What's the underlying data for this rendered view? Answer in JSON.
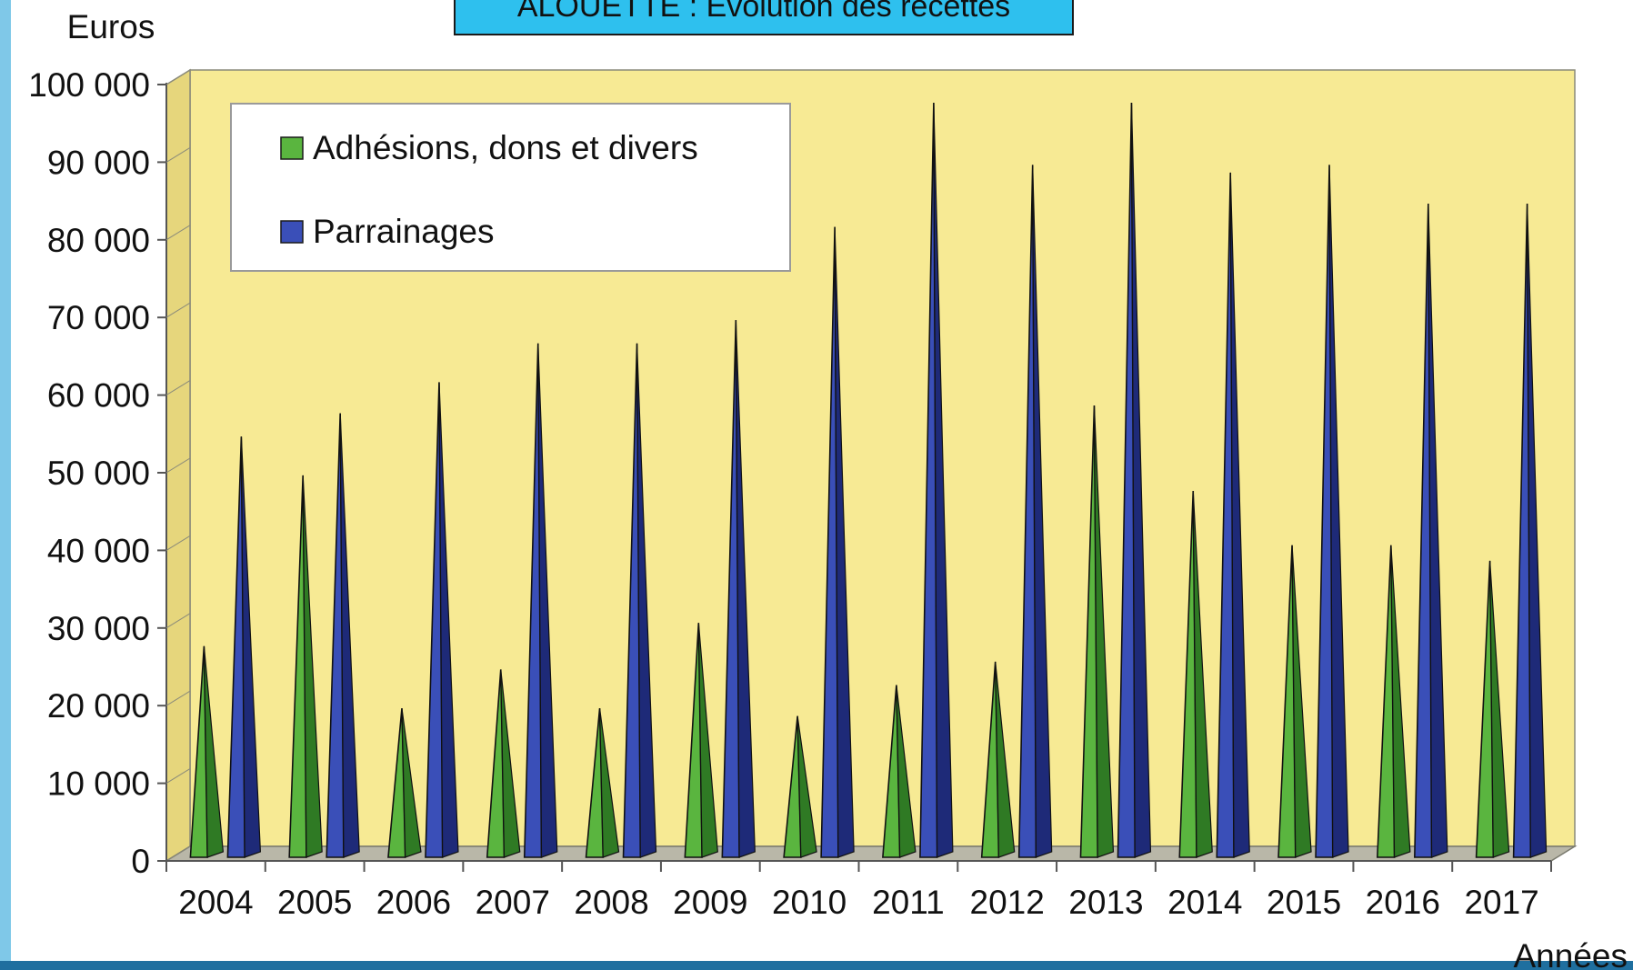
{
  "colors": {
    "page_background": "#ffffff",
    "plot_background": "#f7ea94",
    "plot_floor": "#b9b7a8",
    "title_background": "#2ec0ee",
    "left_accent": "#7fc8e8",
    "bottom_accent": "#1f6f9f",
    "series_adhesions": "#5ab53f",
    "series_adhesions_dark": "#2f7a24",
    "series_parrainages": "#3a4fb8",
    "series_parrainages_dark": "#1e2a78"
  },
  "chart_data": {
    "type": "bar",
    "bar_shape": "cone",
    "title": "ALOUETTE : Évolution des recettes",
    "ylabel": "Euros",
    "xlabel": "Années",
    "ylim": [
      0,
      100000
    ],
    "y_ticks": [
      0,
      10000,
      20000,
      30000,
      40000,
      50000,
      60000,
      70000,
      80000,
      90000,
      100000
    ],
    "y_tick_labels": [
      "0",
      "10 000",
      "20 000",
      "30 000",
      "40 000",
      "50 000",
      "60 000",
      "70 000",
      "80 000",
      "90 000",
      "100 000"
    ],
    "categories": [
      "2004",
      "2005",
      "2006",
      "2007",
      "2008",
      "2009",
      "2010",
      "2011",
      "2012",
      "2013",
      "2014",
      "2015",
      "2016",
      "2017"
    ],
    "legend_position": "top-left",
    "grid": false,
    "series": [
      {
        "name": "Adhésions, dons et divers",
        "color": "#5ab53f",
        "values": [
          27000,
          49000,
          19000,
          24000,
          19000,
          30000,
          18000,
          22000,
          25000,
          58000,
          47000,
          40000,
          40000,
          38000
        ]
      },
      {
        "name": "Parrainages",
        "color": "#3a4fb8",
        "values": [
          54000,
          57000,
          61000,
          66000,
          66000,
          69000,
          81000,
          97000,
          89000,
          97000,
          88000,
          89000,
          84000,
          84000
        ]
      }
    ]
  }
}
